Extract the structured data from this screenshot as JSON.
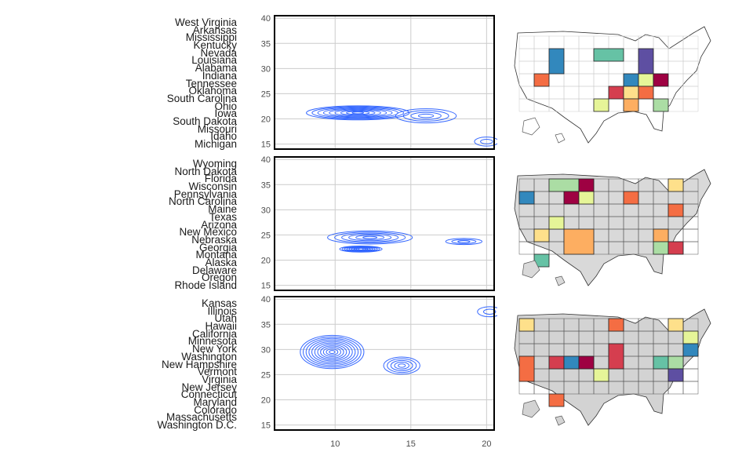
{
  "chart_data": [
    {
      "type": "contour",
      "panel": 1,
      "states": [
        "West Virginia",
        "Arkansas",
        "Mississippi",
        "Kentucky",
        "Nevada",
        "Louisiana",
        "Alabama",
        "Indiana",
        "Tennessee",
        "Oklahoma",
        "South Carolina",
        "Ohio",
        "Iowa",
        "South Dakota",
        "Missouri",
        "Idaho",
        "Michigan"
      ],
      "xlim": [
        6,
        20.5
      ],
      "ylim": [
        14,
        40.5
      ],
      "yticks": [
        15,
        20,
        25,
        30,
        35,
        40
      ],
      "grid": true,
      "line_color": "#3366ff",
      "density_peaks": [
        {
          "x": 11.5,
          "y": 21.2,
          "sx": 3.4,
          "sy": 1.4,
          "levels": 9
        },
        {
          "x": 16.0,
          "y": 20.6,
          "sx": 2.0,
          "sy": 1.4,
          "levels": 4
        },
        {
          "x": 20.0,
          "y": 15.5,
          "sx": 0.8,
          "sy": 0.9,
          "levels": 2
        }
      ]
    },
    {
      "type": "contour",
      "panel": 2,
      "states": [
        "Wyoming",
        "North Dakota",
        "Florida",
        "Wisconsin",
        "Pennsylvania",
        "North Carolina",
        "Maine",
        "Texas",
        "Arizona",
        "New Mexico",
        "Nebraska",
        "Georgia",
        "Montana",
        "Alaska",
        "Delaware",
        "Oregon",
        "Rhode Island"
      ],
      "xlim": [
        6,
        20.5
      ],
      "ylim": [
        14,
        40.5
      ],
      "yticks": [
        15,
        20,
        25,
        30,
        35,
        40
      ],
      "grid": true,
      "line_color": "#3366ff",
      "density_peaks": [
        {
          "x": 11.7,
          "y": 22.2,
          "sx": 1.4,
          "sy": 0.6,
          "levels": 9
        },
        {
          "x": 12.3,
          "y": 24.5,
          "sx": 2.8,
          "sy": 1.3,
          "levels": 6
        },
        {
          "x": 18.5,
          "y": 23.7,
          "sx": 1.2,
          "sy": 0.6,
          "levels": 3
        }
      ]
    },
    {
      "type": "contour",
      "panel": 3,
      "states": [
        "Kansas",
        "Illinois",
        "Utah",
        "Hawaii",
        "California",
        "Minnesota",
        "New York",
        "Washington",
        "New Hampshire",
        "Vermont",
        "Virginia",
        "New Jersey",
        "Connecticut",
        "Maryland",
        "Colorado",
        "Massachusetts",
        "Washington D.C."
      ],
      "xlim": [
        6,
        20.5
      ],
      "ylim": [
        14,
        40.5
      ],
      "xticks": [
        10,
        15,
        20
      ],
      "yticks": [
        15,
        20,
        25,
        30,
        35,
        40
      ],
      "grid": true,
      "line_color": "#3366ff",
      "density_peaks": [
        {
          "x": 9.8,
          "y": 29.5,
          "sx": 2.1,
          "sy": 3.3,
          "levels": 11
        },
        {
          "x": 14.4,
          "y": 26.8,
          "sx": 1.2,
          "sy": 1.7,
          "levels": 5
        },
        {
          "x": 20.2,
          "y": 37.5,
          "sx": 0.8,
          "sy": 1.0,
          "levels": 2
        }
      ]
    }
  ],
  "maps": {
    "palette": [
      "#9e0142",
      "#d53e4f",
      "#f46d43",
      "#fdae61",
      "#fee08b",
      "#e6f598",
      "#abdda4",
      "#66c2a5",
      "#3288bd",
      "#5e4fa2"
    ],
    "other_state_fill_group": [
      "#ffffff",
      "#d9d9d9",
      "#d3d3d3"
    ]
  }
}
